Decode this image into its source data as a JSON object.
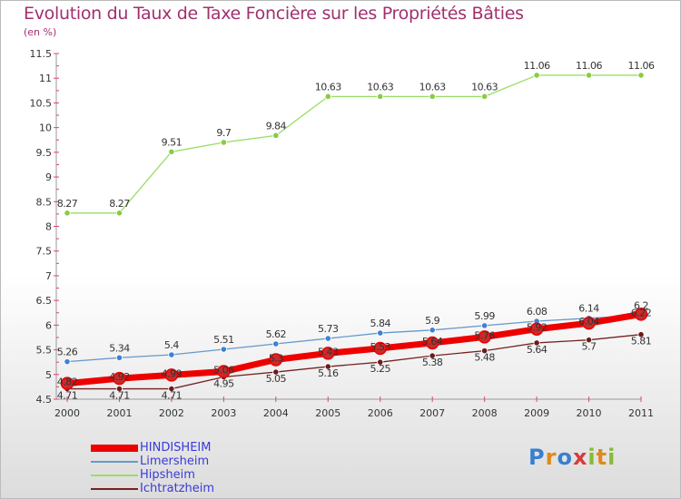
{
  "title": "Evolution du Taux de Taxe Foncière sur les Propriétés Bâties",
  "unit_label": "(en %)",
  "logo_text": "Proxiti",
  "chart_data": {
    "type": "line",
    "x": [
      2000,
      2001,
      2002,
      2003,
      2004,
      2005,
      2006,
      2007,
      2008,
      2009,
      2010,
      2011
    ],
    "ylim": [
      4.5,
      11.5
    ],
    "yticks": [
      "4.5",
      "5",
      "5.5",
      "6",
      "6.5",
      "7",
      "7.5",
      "8",
      "8.5",
      "9",
      "9.5",
      "10",
      "10.5",
      "11",
      "11.5"
    ],
    "xticks": [
      "2000",
      "2001",
      "2002",
      "2003",
      "2004",
      "2005",
      "2006",
      "2007",
      "2008",
      "2009",
      "2010",
      "2011"
    ],
    "grid": false,
    "legend_position": "bottom-left",
    "series": [
      {
        "name": "HINDISHEIM",
        "color": "#ee0000",
        "values": [
          4.82,
          4.92,
          4.99,
          5.06,
          5.3,
          5.43,
          5.53,
          5.64,
          5.76,
          5.92,
          6.04,
          6.22
        ]
      },
      {
        "name": "Limersheim",
        "color": "#6699cc",
        "values": [
          5.26,
          5.34,
          5.4,
          5.51,
          5.62,
          5.73,
          5.84,
          5.9,
          5.99,
          6.08,
          6.14,
          6.2
        ]
      },
      {
        "name": "Hipsheim",
        "color": "#99dd66",
        "values": [
          8.27,
          8.27,
          9.51,
          9.7,
          9.84,
          10.63,
          10.63,
          10.63,
          10.63,
          11.06,
          11.06,
          11.06
        ]
      },
      {
        "name": "Ichtratzheim",
        "color": "#772222",
        "values": [
          4.71,
          4.71,
          4.71,
          4.95,
          5.05,
          5.16,
          5.25,
          5.38,
          5.48,
          5.64,
          5.7,
          5.81
        ]
      }
    ],
    "data_labels": [
      {
        "series": 0,
        "labels": [
          "4.82",
          "4.92",
          "4.99",
          "5.06",
          "5.3",
          "5.43",
          "5.53",
          "5.64",
          "5.76",
          "5.92",
          "6.04",
          "6.22"
        ]
      },
      {
        "series": 1,
        "labels": [
          "5.26",
          "5.34",
          "5.4",
          "5.51",
          "5.62",
          "5.73",
          "5.84",
          "5.9",
          "5.99",
          "6.08",
          "6.14",
          "6.2"
        ]
      },
      {
        "series": 2,
        "labels": [
          "8.27",
          "8.27",
          "9.51",
          "9.7",
          "9.84",
          "10.63",
          "10.63",
          "10.63",
          "10.63",
          "11.06",
          "11.06",
          "11.06"
        ]
      },
      {
        "series": 3,
        "labels": [
          "4.71",
          "4.71",
          "4.71",
          "4.95",
          "5.05",
          "5.16",
          "5.25",
          "5.38",
          "5.48",
          "5.64",
          "5.7",
          "5.81"
        ]
      }
    ]
  }
}
